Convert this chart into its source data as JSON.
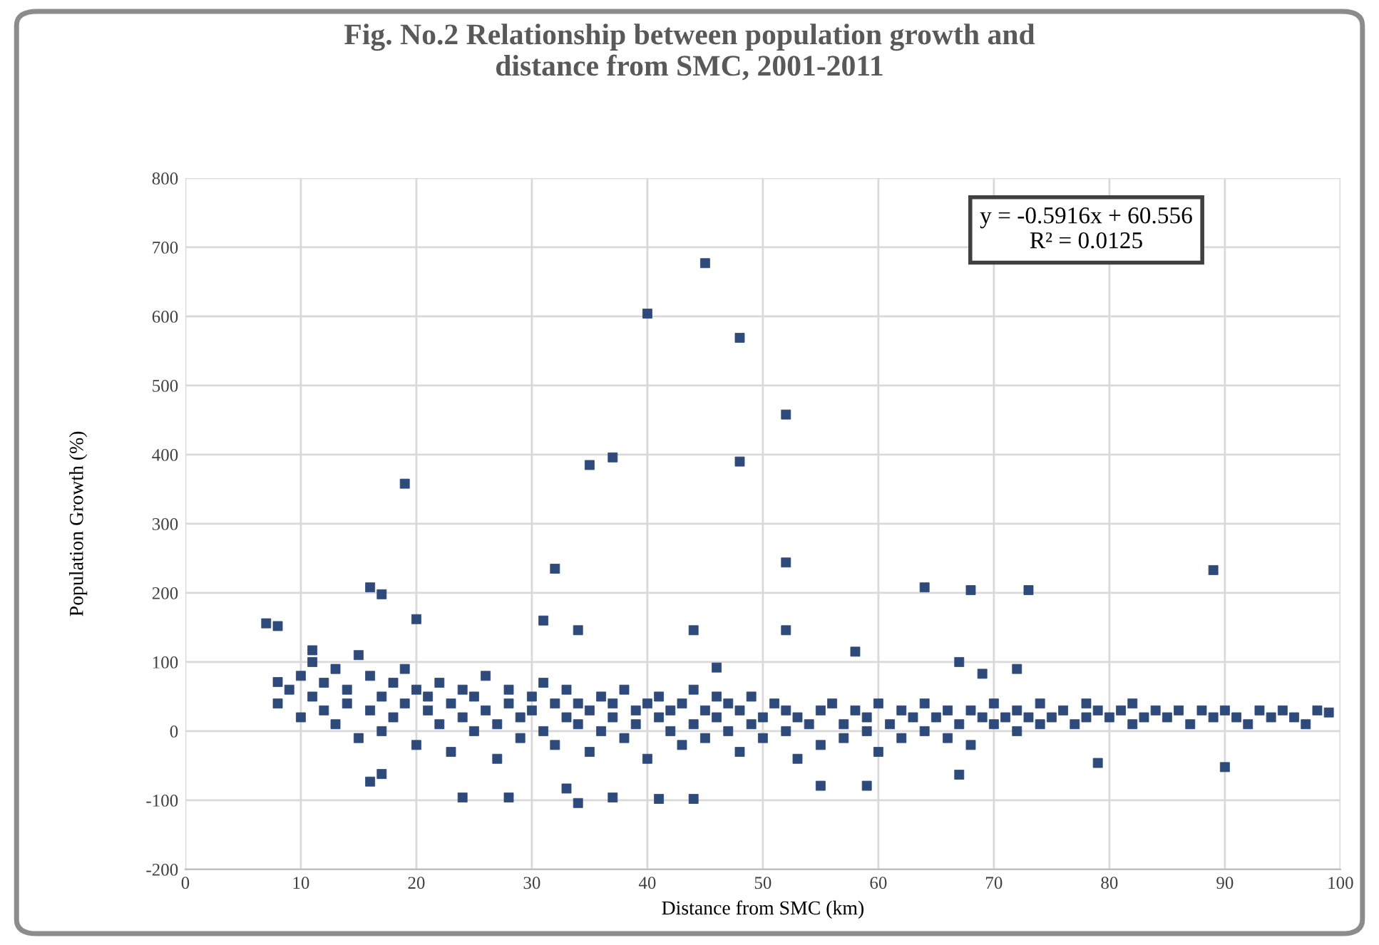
{
  "chart_data": {
    "type": "scatter",
    "title": "Fig. No.2 Relationship between population growth and\ndistance from SMC, 2001-2011",
    "xlabel": "Distance from SMC (km)",
    "ylabel": "Population Growth (%)",
    "annotations": [
      "y = -0.5916x + 60.556\nR² = 0.0125"
    ],
    "xlim": [
      0,
      100
    ],
    "xticks": [
      0,
      10,
      20,
      30,
      40,
      50,
      60,
      70,
      80,
      90,
      100
    ],
    "ylim": [
      -200,
      800
    ],
    "yticks": [
      -200,
      -100,
      0,
      100,
      200,
      300,
      400,
      500,
      600,
      700,
      800
    ],
    "grid": true,
    "marker": "square",
    "series": [
      {
        "color": "#2e4a7a",
        "x": [
          7,
          8,
          8,
          11,
          19,
          20,
          16,
          17,
          32,
          31,
          34,
          35,
          37,
          40,
          45,
          48,
          48,
          52,
          52,
          52,
          44,
          46,
          58,
          64,
          68,
          73,
          89,
          67,
          69,
          72,
          16,
          17,
          24,
          28,
          33,
          34,
          37,
          41,
          44,
          55,
          59,
          67,
          79,
          90,
          8,
          9,
          10,
          10,
          11,
          11,
          12,
          12,
          13,
          13,
          14,
          14,
          15,
          15,
          16,
          16,
          17,
          17,
          18,
          18,
          19,
          19,
          20,
          20,
          21,
          21,
          22,
          22,
          23,
          23,
          24,
          24,
          25,
          25,
          26,
          26,
          27,
          27,
          28,
          28,
          29,
          29,
          30,
          30,
          31,
          31,
          32,
          32,
          33,
          33,
          34,
          34,
          35,
          35,
          36,
          36,
          37,
          37,
          38,
          38,
          39,
          39,
          40,
          40,
          41,
          41,
          42,
          42,
          43,
          43,
          44,
          44,
          45,
          45,
          46,
          46,
          47,
          47,
          48,
          48,
          49,
          49,
          50,
          50,
          51,
          52,
          52,
          53,
          53,
          54,
          55,
          55,
          56,
          57,
          57,
          58,
          59,
          59,
          60,
          60,
          61,
          62,
          62,
          63,
          64,
          64,
          65,
          66,
          66,
          67,
          68,
          68,
          69,
          70,
          70,
          71,
          72,
          72,
          73,
          74,
          74,
          75,
          76,
          77,
          78,
          78,
          79,
          80,
          81,
          82,
          82,
          83,
          84,
          85,
          86,
          87,
          88,
          89,
          90,
          91,
          92,
          93,
          94,
          95,
          96,
          97,
          98,
          99
        ],
        "values": [
          156,
          152,
          71,
          117,
          358,
          162,
          208,
          198,
          235,
          160,
          146,
          385,
          396,
          604,
          677,
          569,
          390,
          458,
          244,
          146,
          146,
          92,
          115,
          208,
          204,
          204,
          233,
          100,
          83,
          90,
          -73,
          -62,
          -96,
          -96,
          -83,
          -104,
          -96,
          -98,
          -98,
          -79,
          -79,
          -63,
          -46,
          -52,
          40,
          60,
          80,
          20,
          50,
          100,
          30,
          70,
          90,
          10,
          60,
          40,
          110,
          -10,
          80,
          30,
          50,
          0,
          70,
          20,
          40,
          90,
          60,
          -20,
          30,
          50,
          10,
          70,
          40,
          -30,
          20,
          60,
          50,
          0,
          30,
          80,
          10,
          -40,
          40,
          60,
          20,
          -10,
          50,
          30,
          0,
          70,
          40,
          -20,
          20,
          60,
          10,
          40,
          -30,
          30,
          50,
          0,
          20,
          40,
          -10,
          60,
          30,
          10,
          40,
          -40,
          20,
          50,
          0,
          30,
          40,
          -20,
          10,
          60,
          30,
          -10,
          20,
          50,
          0,
          40,
          30,
          -30,
          10,
          50,
          20,
          -10,
          40,
          0,
          30,
          20,
          -40,
          10,
          30,
          -20,
          40,
          10,
          -10,
          30,
          0,
          20,
          40,
          -30,
          10,
          30,
          -10,
          20,
          0,
          40,
          20,
          -10,
          30,
          10,
          30,
          -20,
          20,
          10,
          40,
          20,
          0,
          30,
          20,
          10,
          40,
          20,
          30,
          10,
          20,
          40,
          30,
          20,
          30,
          10,
          40,
          20,
          30,
          20,
          30,
          10,
          30,
          20,
          30,
          20,
          10,
          30,
          20,
          30,
          20,
          10,
          30,
          27
        ]
      }
    ]
  }
}
